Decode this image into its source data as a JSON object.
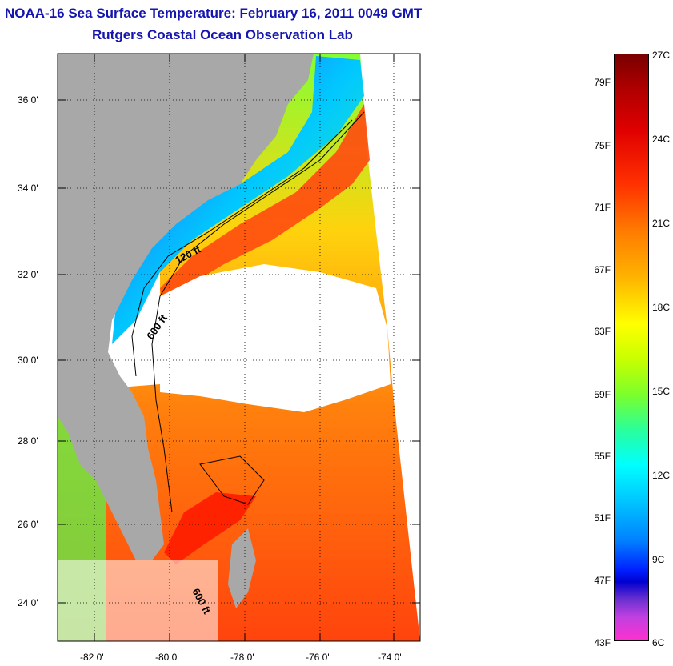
{
  "header": {
    "title": "NOAA-16 Sea Surface Temperature:  February 16, 2011 0049 GMT",
    "subtitle": "Rutgers Coastal Ocean Observation Lab"
  },
  "map": {
    "latitude_labels": [
      "36 0'",
      "34 0'",
      "32 0'",
      "30 0'",
      "28 0'",
      "26 0'",
      "24 0'"
    ],
    "longitude_labels": [
      "-82 0'",
      "-80 0'",
      "-78 0'",
      "-76 0'",
      "-74 0'"
    ],
    "isobath_labels": [
      "120 ft",
      "600 ft",
      "600 ft"
    ],
    "colors": {
      "land": "#a8a8a8",
      "no_data": "#ffffff",
      "title": "#1515b0"
    }
  },
  "colorbar": {
    "fahrenheit_labels": [
      "79F",
      "75F",
      "71F",
      "67F",
      "63F",
      "59F",
      "55F",
      "51F",
      "47F",
      "43F"
    ],
    "celsius_labels": [
      "27C",
      "24C",
      "21C",
      "18C",
      "15C",
      "12C",
      "9C",
      "6C"
    ]
  }
}
